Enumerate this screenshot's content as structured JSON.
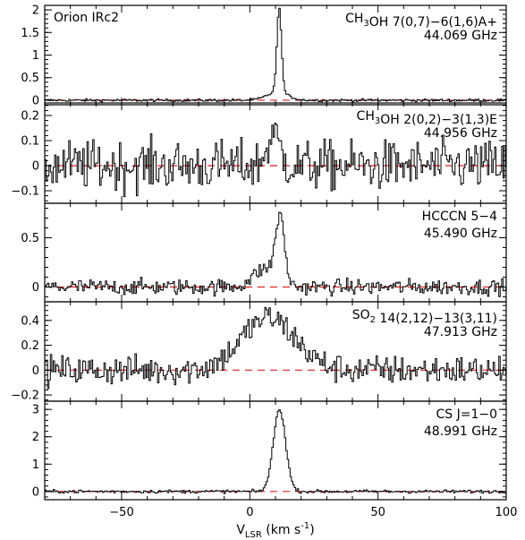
{
  "chart_data": {
    "type": "line",
    "source_label": "Orion IRc2",
    "xlabel": "V_LSR (km s^-1)",
    "xlabel_parts": {
      "main": "V",
      "sub": "LSR",
      "rest": " (km s",
      "sup": "-1",
      "close": ")"
    },
    "xlim": [
      -80,
      100
    ],
    "xticks_major": [
      -50,
      0,
      50,
      100
    ],
    "xticks_minor_step": 10,
    "baseline_color": "#e02020",
    "line_color": "#000000",
    "panels": [
      {
        "name": "ch3oh-44",
        "species_label": [
          {
            "t": "CH"
          },
          {
            "sub": "3"
          },
          {
            "t": "OH 7(0,7)−6(1,6)A+"
          }
        ],
        "freq": "44.069 GHz",
        "ylim": [
          -0.1,
          2.1
        ],
        "yticks": [
          0,
          0.5,
          1,
          1.5,
          2
        ],
        "ytick_labels": [
          "0",
          "0.5",
          "1",
          "1.5",
          "2"
        ],
        "noise": 0.015,
        "components": [
          {
            "center": 10.5,
            "sigma": 4.0,
            "amp": 0.18
          },
          {
            "center": 11.2,
            "sigma": 0.9,
            "amp": 1.85
          }
        ]
      },
      {
        "name": "ch3oh-45",
        "species_label": [
          {
            "t": "CH"
          },
          {
            "sub": "3"
          },
          {
            "t": "OH 2(0,2)−3(1,3)E"
          }
        ],
        "freq": "44.956 GHz",
        "ylim": [
          -0.15,
          0.25
        ],
        "yticks": [
          -0.1,
          0,
          0.1,
          0.2
        ],
        "ytick_labels": [
          "−0.1",
          "0",
          "0.1",
          "0.2"
        ],
        "noise": 0.05,
        "components": [
          {
            "center": 9.0,
            "sigma": 2.5,
            "amp": 0.12
          }
        ]
      },
      {
        "name": "hcccn",
        "species_label": [
          {
            "t": "HCCCN 5−4"
          }
        ],
        "freq": "45.490 GHz",
        "ylim": [
          -0.15,
          0.85
        ],
        "yticks": [
          0,
          0.5
        ],
        "ytick_labels": [
          "0",
          "0.5"
        ],
        "noise": 0.04,
        "components": [
          {
            "center": 5.5,
            "sigma": 4.5,
            "amp": 0.18
          },
          {
            "center": 11.5,
            "sigma": 1.8,
            "amp": 0.65
          }
        ]
      },
      {
        "name": "so2",
        "species_label": [
          {
            "t": "SO"
          },
          {
            "sub": "2"
          },
          {
            "t": " 14(2,12)−13(3,11)"
          }
        ],
        "freq": "47.913 GHz",
        "ylim": [
          -0.25,
          0.55
        ],
        "yticks": [
          -0.2,
          0,
          0.2,
          0.4
        ],
        "ytick_labels": [
          "−0.2",
          "0",
          "0.2",
          "0.4"
        ],
        "noise": 0.06,
        "components": [
          {
            "center": 7.0,
            "sigma": 10.5,
            "amp": 0.42
          }
        ]
      },
      {
        "name": "cs",
        "species_label": [
          {
            "t": "CS J=1−0"
          }
        ],
        "freq": "48.991 GHz",
        "ylim": [
          -0.3,
          3.3
        ],
        "yticks": [
          0,
          1,
          2,
          3
        ],
        "ytick_labels": [
          "0",
          "1",
          "2",
          "3"
        ],
        "noise": 0.03,
        "components": [
          {
            "center": 11.3,
            "sigma": 2.4,
            "amp": 3.0
          }
        ]
      }
    ]
  }
}
